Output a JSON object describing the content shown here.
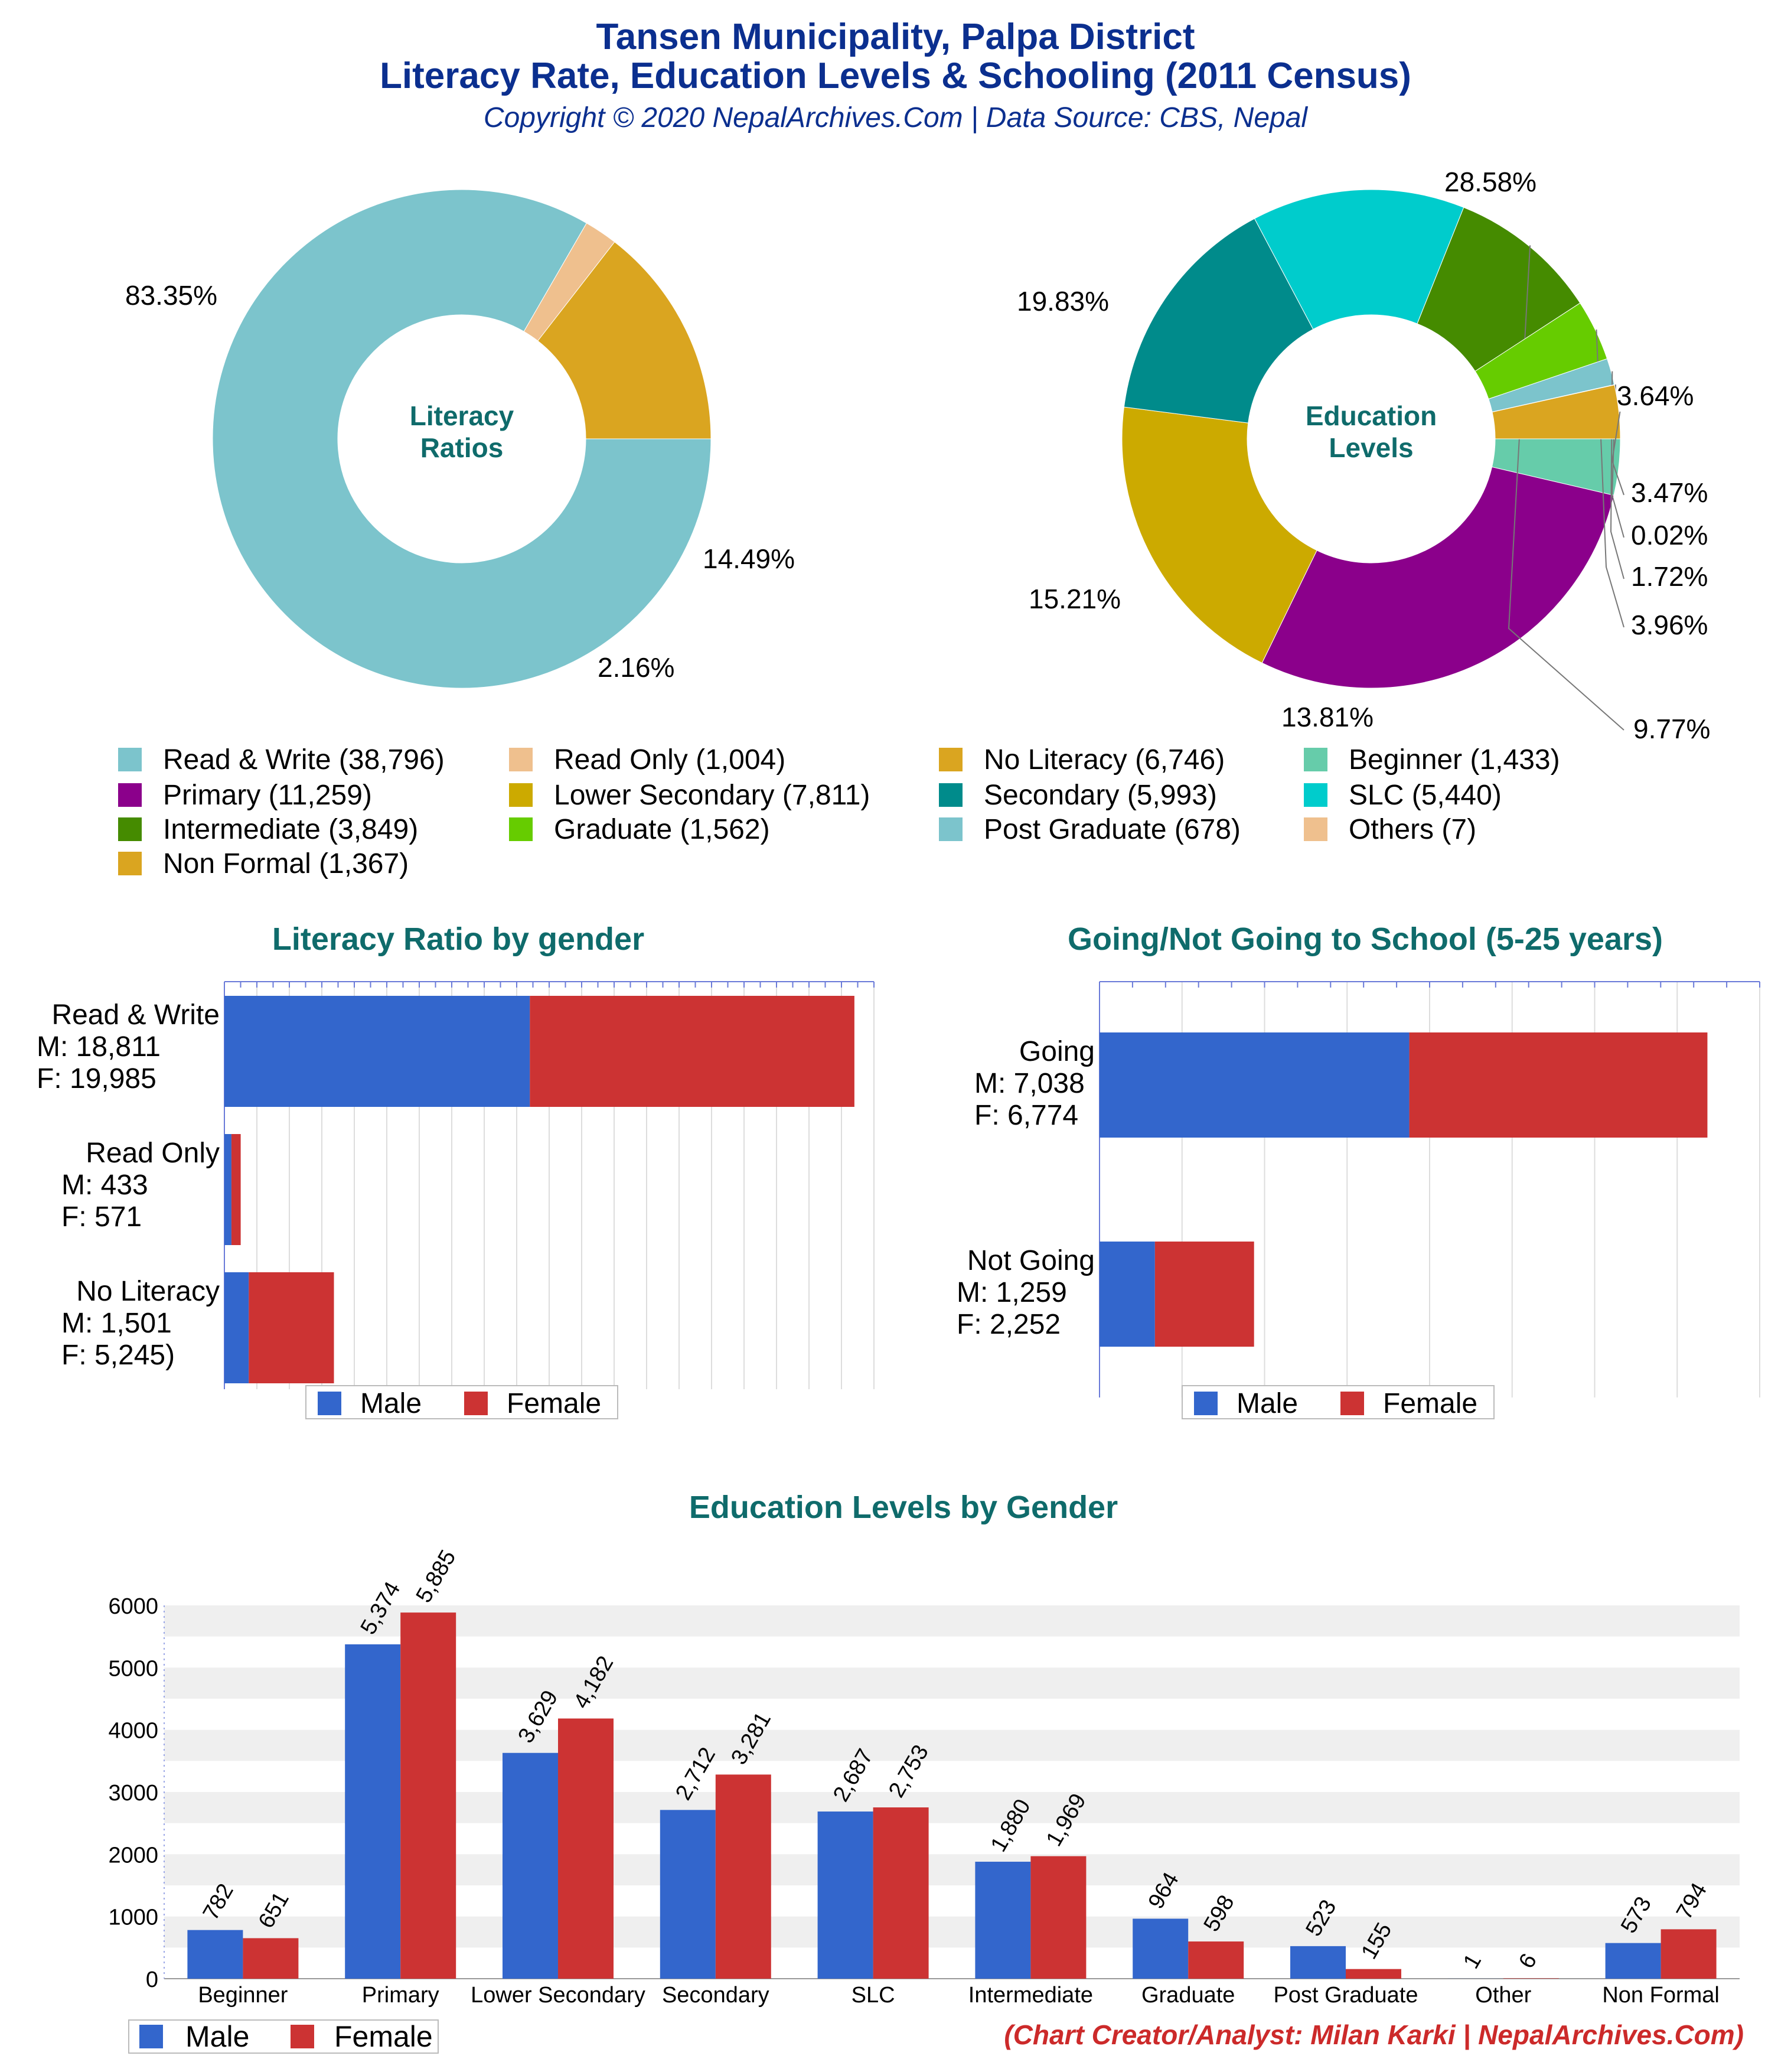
{
  "header": {
    "title_line1": "Tansen Municipality, Palpa District",
    "title_line2": "Literacy Rate, Education Levels & Schooling (2011 Census)",
    "copyright": "Copyright © 2020 NepalArchives.Com | Data Source: CBS, Nepal"
  },
  "footer": {
    "credit": "(Chart Creator/Analyst: Milan Karki | NepalArchives.Com)"
  },
  "colors": {
    "male": "#3366cc",
    "female": "#cc3333",
    "title_teal": "#0f6b6b",
    "header_blue": "#0b2f8f"
  },
  "legend_items": [
    {
      "label": "Read & Write (38,796)",
      "color": "#7cc4cc"
    },
    {
      "label": "Read Only (1,004)",
      "color": "#efc08e"
    },
    {
      "label": "No Literacy (6,746)",
      "color": "#daa520"
    },
    {
      "label": "Beginner (1,433)",
      "color": "#66ccaa"
    },
    {
      "label": "Primary (11,259)",
      "color": "#8b008b"
    },
    {
      "label": "Lower Secondary (7,811)",
      "color": "#ccaa00"
    },
    {
      "label": "Secondary (5,993)",
      "color": "#008b8b"
    },
    {
      "label": "SLC (5,440)",
      "color": "#00cccc"
    },
    {
      "label": "Intermediate (3,849)",
      "color": "#458b00"
    },
    {
      "label": "Graduate (1,562)",
      "color": "#66cc00"
    },
    {
      "label": "Post Graduate (678)",
      "color": "#7cc4cc"
    },
    {
      "label": "Others (7)",
      "color": "#efc08e"
    },
    {
      "label": "Non Formal (1,367)",
      "color": "#daa520"
    }
  ],
  "chart_data": [
    {
      "type": "pie",
      "center_label": "Literacy Ratios",
      "slices": [
        {
          "label": "Read & Write",
          "value": 38796,
          "percent_label": "83.35%",
          "color": "#7cc4cc"
        },
        {
          "label": "Read Only",
          "value": 1004,
          "percent_label": "2.16%",
          "color": "#efc08e"
        },
        {
          "label": "No Literacy",
          "value": 6746,
          "percent_label": "14.49%",
          "color": "#daa520"
        }
      ]
    },
    {
      "type": "pie",
      "center_label": "Education Levels",
      "slices": [
        {
          "label": "Beginner",
          "value": 1433,
          "percent_label": "3.64%",
          "color": "#66ccaa"
        },
        {
          "label": "Primary",
          "value": 11259,
          "percent_label": "28.58%",
          "color": "#8b008b"
        },
        {
          "label": "Lower Secondary",
          "value": 7811,
          "percent_label": "19.83%",
          "color": "#ccaa00"
        },
        {
          "label": "Secondary",
          "value": 5993,
          "percent_label": "15.21%",
          "color": "#008b8b"
        },
        {
          "label": "SLC",
          "value": 5440,
          "percent_label": "13.81%",
          "color": "#00cccc"
        },
        {
          "label": "Intermediate",
          "value": 3849,
          "percent_label": "9.77%",
          "color": "#458b00"
        },
        {
          "label": "Graduate",
          "value": 1562,
          "percent_label": "3.96%",
          "color": "#66cc00"
        },
        {
          "label": "Post Graduate",
          "value": 678,
          "percent_label": "1.72%",
          "color": "#7cc4cc"
        },
        {
          "label": "Others",
          "value": 7,
          "percent_label": "0.02%",
          "color": "#efc08e"
        },
        {
          "label": "Non Formal",
          "value": 1367,
          "percent_label": "3.47%",
          "color": "#daa520"
        }
      ]
    },
    {
      "type": "bar",
      "orientation": "horizontal",
      "stacked": true,
      "title": "Literacy Ratio by gender",
      "categories": [
        {
          "lines": [
            "Read & Write",
            "M: 18,811",
            "F: 19,985"
          ]
        },
        {
          "lines": [
            "Read Only",
            "M: 433",
            "F: 571"
          ]
        },
        {
          "lines": [
            "No Literacy",
            "M: 1,501",
            "F: 5,245)"
          ]
        }
      ],
      "series": [
        {
          "name": "Male",
          "values": [
            18811,
            433,
            1501
          ]
        },
        {
          "name": "Female",
          "values": [
            19985,
            571,
            5245
          ]
        }
      ],
      "xlim": [
        0,
        40000
      ],
      "legend": "bottom"
    },
    {
      "type": "bar",
      "orientation": "horizontal",
      "stacked": true,
      "title": "Going/Not Going to School (5-25 years)",
      "categories": [
        {
          "lines": [
            "Going",
            "M: 7,038",
            "F: 6,774"
          ]
        },
        {
          "lines": [
            "Not Going",
            "M: 1,259",
            "F: 2,252"
          ]
        }
      ],
      "series": [
        {
          "name": "Male",
          "values": [
            7038,
            1259
          ]
        },
        {
          "name": "Female",
          "values": [
            6774,
            2252
          ]
        }
      ],
      "xlim": [
        0,
        15000
      ],
      "legend": "bottom"
    },
    {
      "type": "bar",
      "orientation": "vertical",
      "title": "Education Levels by Gender",
      "categories": [
        "Beginner",
        "Primary",
        "Lower Secondary",
        "Secondary",
        "SLC",
        "Intermediate",
        "Graduate",
        "Post Graduate",
        "Other",
        "Non Formal"
      ],
      "series": [
        {
          "name": "Male",
          "values": [
            782,
            5374,
            3629,
            2712,
            2687,
            1880,
            964,
            523,
            1,
            573
          ],
          "labels": [
            "782",
            "5,374",
            "3,629",
            "2,712",
            "2,687",
            "1,880",
            "964",
            "523",
            "1",
            "573"
          ]
        },
        {
          "name": "Female",
          "values": [
            651,
            5885,
            4182,
            3281,
            2753,
            1969,
            598,
            155,
            6,
            794
          ],
          "labels": [
            "651",
            "5,885",
            "4,182",
            "3,281",
            "2,753",
            "1,969",
            "598",
            "155",
            "6",
            "794"
          ]
        }
      ],
      "yticks": [
        "0",
        "1000",
        "2000",
        "3000",
        "4000",
        "5000",
        "6000"
      ],
      "ylim": [
        0,
        6000
      ],
      "grid": true,
      "legend": "bottom-left"
    }
  ]
}
